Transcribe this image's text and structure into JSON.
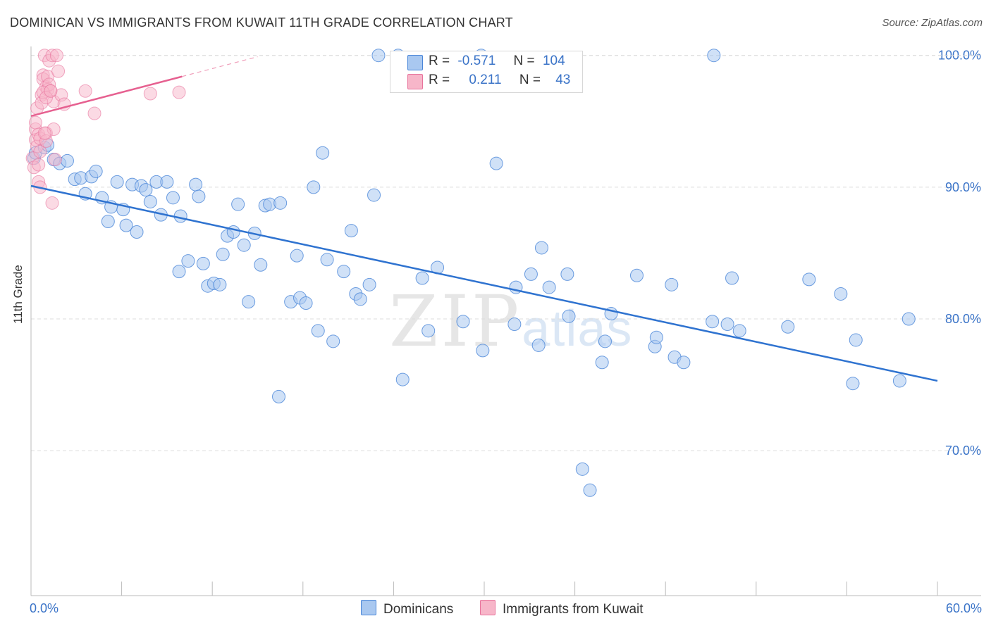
{
  "title": "DOMINICAN VS IMMIGRANTS FROM KUWAIT 11TH GRADE CORRELATION CHART",
  "source": "Source: ZipAtlas.com",
  "watermark": {
    "zip": "ZIP",
    "atlas": "atlas"
  },
  "legend": {
    "rows": [
      {
        "r_label": "R =",
        "r_value": "-0.571",
        "n_label": "N =",
        "n_value": "104",
        "color": "#a9c8f0"
      },
      {
        "r_label": "R =",
        "r_value": "0.211",
        "n_label": "N =",
        "n_value": "43",
        "color": "#f7b6c9"
      }
    ]
  },
  "bottom_legend": [
    {
      "label": "Dominicans",
      "color": "#a9c8f0"
    },
    {
      "label": "Immigrants from Kuwait",
      "color": "#f7b6c9"
    }
  ],
  "chart_data": {
    "type": "scatter",
    "title": "DOMINICAN VS IMMIGRANTS FROM KUWAIT 11TH GRADE CORRELATION CHART",
    "xlabel": "",
    "ylabel": "11th Grade",
    "xlim": [
      0,
      60
    ],
    "ylim": [
      59,
      101
    ],
    "x_tick_labels": [
      "0.0%",
      "60.0%"
    ],
    "y_ticks": [
      70,
      80,
      90,
      100
    ],
    "y_tick_labels": [
      "70.0%",
      "80.0%",
      "90.0%",
      "100.0%"
    ],
    "grid": true,
    "colors": {
      "dominicans": "#4a86d8",
      "dominicans_fill": "#a9c8f0",
      "kuwait": "#e8739c",
      "kuwait_fill": "#f7b6c9"
    },
    "series": [
      {
        "name": "Dominicans",
        "trend": {
          "x": [
            0,
            60
          ],
          "y": [
            90.1,
            75.3
          ]
        },
        "points": [
          [
            0.2,
            92.2
          ],
          [
            0.3,
            92.6
          ],
          [
            0.9,
            93.0
          ],
          [
            1.1,
            93.2
          ],
          [
            1.5,
            92.1
          ],
          [
            1.9,
            91.8
          ],
          [
            2.4,
            92.0
          ],
          [
            2.9,
            90.6
          ],
          [
            3.3,
            90.7
          ],
          [
            3.6,
            89.5
          ],
          [
            4.0,
            90.8
          ],
          [
            4.3,
            91.2
          ],
          [
            4.7,
            89.2
          ],
          [
            5.1,
            87.4
          ],
          [
            5.3,
            88.5
          ],
          [
            5.7,
            90.4
          ],
          [
            6.1,
            88.3
          ],
          [
            6.3,
            87.1
          ],
          [
            6.7,
            90.2
          ],
          [
            7.0,
            86.6
          ],
          [
            7.3,
            90.1
          ],
          [
            7.6,
            89.8
          ],
          [
            7.9,
            88.9
          ],
          [
            8.3,
            90.4
          ],
          [
            8.6,
            87.9
          ],
          [
            9.0,
            90.4
          ],
          [
            9.4,
            89.2
          ],
          [
            9.9,
            87.8
          ],
          [
            9.8,
            83.6
          ],
          [
            10.4,
            84.4
          ],
          [
            10.9,
            90.2
          ],
          [
            11.1,
            89.3
          ],
          [
            11.4,
            84.2
          ],
          [
            11.7,
            82.5
          ],
          [
            12.1,
            82.7
          ],
          [
            12.5,
            82.6
          ],
          [
            12.7,
            84.9
          ],
          [
            13.0,
            86.3
          ],
          [
            13.4,
            86.6
          ],
          [
            13.7,
            88.7
          ],
          [
            14.1,
            85.6
          ],
          [
            14.4,
            81.3
          ],
          [
            14.8,
            86.5
          ],
          [
            15.2,
            84.1
          ],
          [
            15.5,
            88.6
          ],
          [
            15.8,
            88.7
          ],
          [
            16.5,
            88.8
          ],
          [
            16.4,
            74.1
          ],
          [
            17.2,
            81.3
          ],
          [
            17.6,
            84.8
          ],
          [
            17.8,
            81.6
          ],
          [
            18.2,
            81.2
          ],
          [
            18.7,
            90.0
          ],
          [
            19.0,
            79.1
          ],
          [
            19.3,
            92.6
          ],
          [
            19.6,
            84.5
          ],
          [
            20.0,
            78.3
          ],
          [
            20.7,
            83.6
          ],
          [
            21.2,
            86.7
          ],
          [
            21.5,
            81.9
          ],
          [
            21.8,
            81.5
          ],
          [
            22.4,
            82.6
          ],
          [
            22.7,
            89.4
          ],
          [
            23.0,
            100.0
          ],
          [
            24.3,
            100.0
          ],
          [
            24.6,
            75.4
          ],
          [
            25.9,
            83.1
          ],
          [
            26.3,
            79.1
          ],
          [
            26.9,
            83.9
          ],
          [
            28.6,
            79.8
          ],
          [
            29.8,
            100.0
          ],
          [
            29.9,
            77.6
          ],
          [
            30.8,
            91.8
          ],
          [
            32.0,
            79.6
          ],
          [
            32.1,
            82.4
          ],
          [
            33.1,
            83.4
          ],
          [
            33.6,
            78.0
          ],
          [
            33.8,
            85.4
          ],
          [
            34.3,
            82.4
          ],
          [
            35.5,
            83.4
          ],
          [
            35.6,
            80.2
          ],
          [
            36.5,
            68.6
          ],
          [
            37.0,
            67.0
          ],
          [
            37.8,
            76.7
          ],
          [
            38.0,
            78.3
          ],
          [
            38.4,
            80.4
          ],
          [
            40.1,
            83.3
          ],
          [
            41.3,
            77.9
          ],
          [
            41.4,
            78.6
          ],
          [
            42.4,
            82.6
          ],
          [
            42.6,
            77.1
          ],
          [
            43.2,
            76.7
          ],
          [
            45.1,
            79.8
          ],
          [
            45.2,
            100.0
          ],
          [
            46.1,
            79.6
          ],
          [
            46.4,
            83.1
          ],
          [
            46.9,
            79.1
          ],
          [
            50.1,
            79.4
          ],
          [
            51.5,
            83.0
          ],
          [
            53.6,
            81.9
          ],
          [
            54.4,
            75.1
          ],
          [
            54.6,
            78.4
          ],
          [
            57.5,
            75.3
          ],
          [
            58.1,
            80.0
          ]
        ]
      },
      {
        "name": "Immigrants from Kuwait",
        "trend": {
          "x": [
            0,
            10
          ],
          "y": [
            95.4,
            98.4
          ]
        },
        "points": [
          [
            0.1,
            92.2
          ],
          [
            0.2,
            91.5
          ],
          [
            0.3,
            93.6
          ],
          [
            0.3,
            94.4
          ],
          [
            0.3,
            94.9
          ],
          [
            0.4,
            96.0
          ],
          [
            0.4,
            93.1
          ],
          [
            0.5,
            90.4
          ],
          [
            0.5,
            94.0
          ],
          [
            0.6,
            93.7
          ],
          [
            0.6,
            92.7
          ],
          [
            0.6,
            90.0
          ],
          [
            0.7,
            97.0
          ],
          [
            0.7,
            96.4
          ],
          [
            0.8,
            98.5
          ],
          [
            0.8,
            98.2
          ],
          [
            0.9,
            100.0
          ],
          [
            1.0,
            94.1
          ],
          [
            1.0,
            93.5
          ],
          [
            1.0,
            97.6
          ],
          [
            1.1,
            97.4
          ],
          [
            1.1,
            98.4
          ],
          [
            1.2,
            99.6
          ],
          [
            1.2,
            97.8
          ],
          [
            1.3,
            97.3
          ],
          [
            1.4,
            100.0
          ],
          [
            1.4,
            88.8
          ],
          [
            1.5,
            96.5
          ],
          [
            1.5,
            94.4
          ],
          [
            1.6,
            92.1
          ],
          [
            1.7,
            100.0
          ],
          [
            1.8,
            98.8
          ],
          [
            2.0,
            97.0
          ],
          [
            2.2,
            96.3
          ],
          [
            3.6,
            97.3
          ],
          [
            4.2,
            95.6
          ],
          [
            7.9,
            97.1
          ],
          [
            9.8,
            97.2
          ],
          [
            0.8,
            97.2
          ],
          [
            1.0,
            96.8
          ],
          [
            0.5,
            91.7
          ],
          [
            1.3,
            97.3
          ],
          [
            0.9,
            94.1
          ]
        ]
      }
    ]
  }
}
